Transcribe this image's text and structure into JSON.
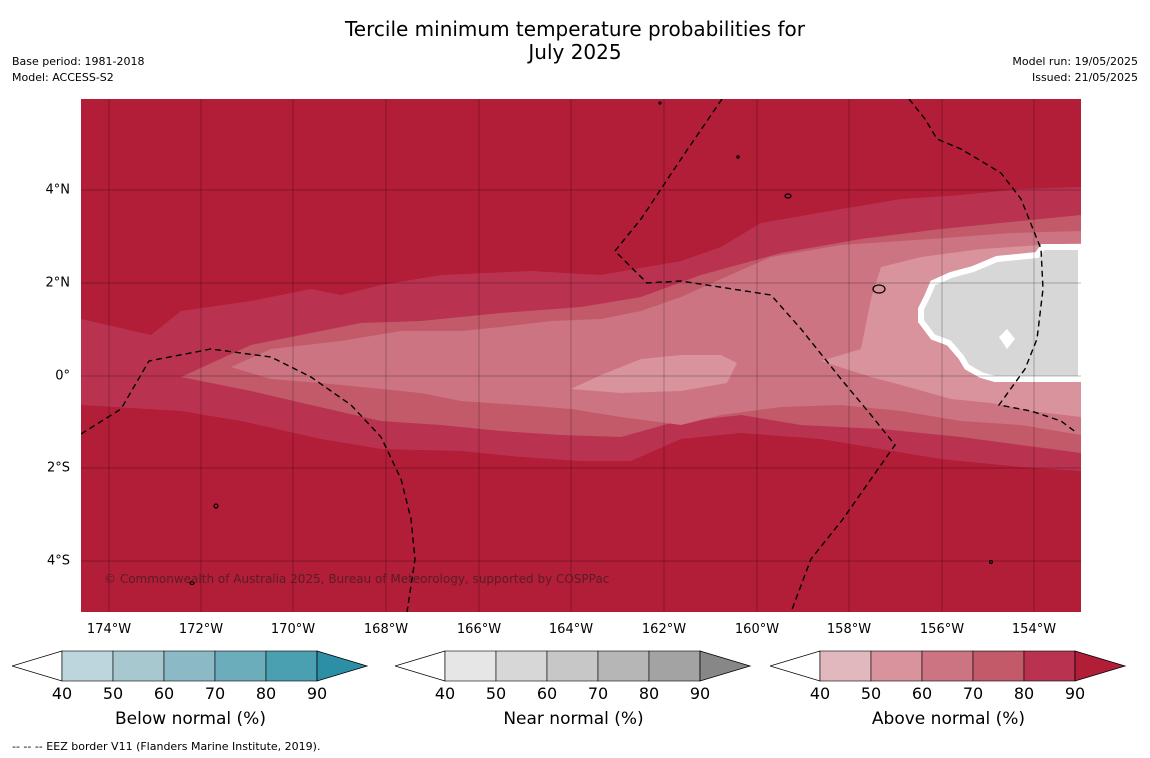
{
  "title_line1": "Tercile minimum temperature probabilities for",
  "title_line2": "July 2025",
  "base_period": "Base period: 1981-2018",
  "model": "Model: ACCESS-S2",
  "model_run": "Model run: 19/05/2025",
  "issued": "Issued: 21/05/2025",
  "copyright": "© Commonwealth of Australia 2025, Bureau of Meteorology, supported by COSPPac",
  "footnote": "--  --  -- EEZ border V11 (Flanders Marine Institute, 2019).",
  "map": {
    "extent": {
      "lon_min": -174.6,
      "lon_max": -153.0,
      "lat_min": -5.1,
      "lat_max": 5.9
    },
    "lat_ticks": [
      "4°N",
      "2°N",
      "0°",
      "2°S",
      "4°S"
    ],
    "lon_ticks": [
      "174°W",
      "172°W",
      "170°W",
      "168°W",
      "166°W",
      "164°W",
      "162°W",
      "160°W",
      "158°W",
      "156°W",
      "154°W"
    ],
    "background_color": "#b21d38",
    "near_normal_color": "#d7d7d7",
    "gridlines": true
  },
  "colorbars": [
    {
      "title": "Below normal (%)",
      "ticks": [
        "40",
        "50",
        "60",
        "70",
        "80",
        "90"
      ],
      "colors": [
        "#bdd5dc",
        "#a7c8cf",
        "#8bb9c6",
        "#6cadbb",
        "#4aa0b0",
        "#2d8fa5"
      ]
    },
    {
      "title": "Near normal (%)",
      "ticks": [
        "40",
        "50",
        "60",
        "70",
        "80",
        "90"
      ],
      "colors": [
        "#e6e6e6",
        "#d7d7d7",
        "#c7c7c7",
        "#b6b6b6",
        "#a3a3a3",
        "#878787"
      ]
    },
    {
      "title": "Above normal (%)",
      "ticks": [
        "40",
        "50",
        "60",
        "70",
        "80",
        "90"
      ],
      "colors": [
        "#e2b8bf",
        "#d8939c",
        "#cd7482",
        "#c35a6a",
        "#b93350",
        "#b21d38"
      ]
    }
  ]
}
